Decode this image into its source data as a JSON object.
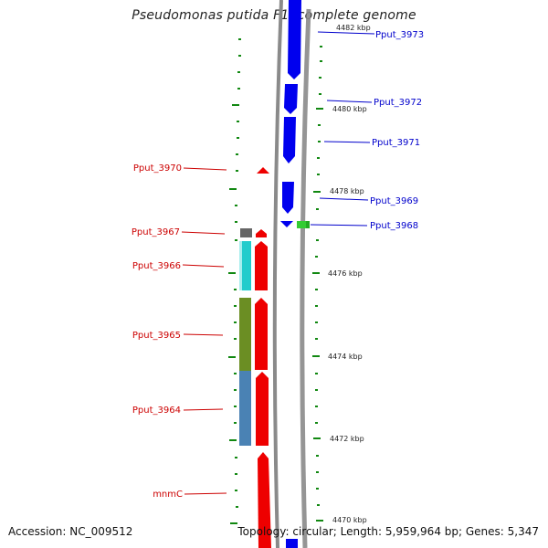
{
  "title": "Pseudomonas putida F1, complete genome",
  "footer": {
    "accession": "Accession: NC_009512",
    "summary": "Topology: circular; Length: 5,959,964 bp; Genes: 5,347"
  },
  "scale_labels": [
    "4482 kbp",
    "4480 kbp",
    "4478 kbp",
    "4476 kbp",
    "4474 kbp",
    "4472 kbp",
    "4470 kbp"
  ],
  "forward_genes": [
    "Pput_3973",
    "Pput_3972",
    "Pput_3971",
    "Pput_3969",
    "Pput_3968"
  ],
  "reverse_genes": [
    "Pput_3970",
    "Pput_3967",
    "Pput_3966",
    "Pput_3965",
    "Pput_3964",
    "mnmC"
  ],
  "colors": {
    "forward_strand": "#0000ee",
    "reverse_strand": "#ee0000",
    "backbone": "#808080",
    "scale_ticks": "#118811",
    "rna_feature": "#33cc33",
    "cog_gray": "#666666",
    "cog_cyan": "#22cccc",
    "cog_olive": "#6b8e23",
    "cog_steelblue": "#4a82b4",
    "forward_label": "#0000cc",
    "reverse_label": "#cc0000"
  }
}
